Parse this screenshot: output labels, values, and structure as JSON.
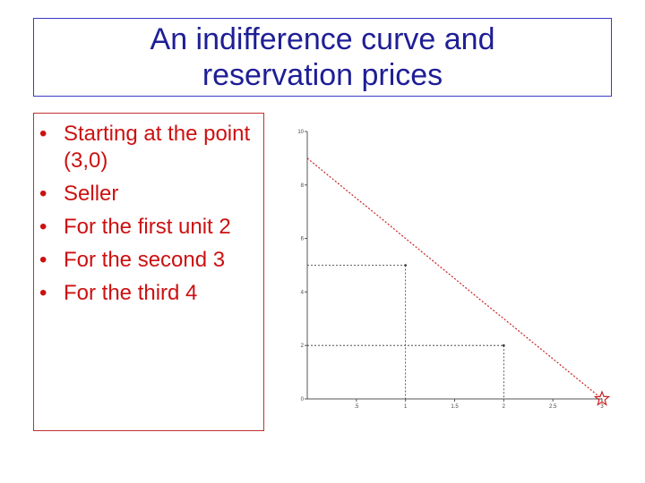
{
  "slide": {
    "title_lines": [
      "An indifference curve and",
      "reservation prices"
    ],
    "bullets": [
      "Starting at the point (3,0)",
      "Seller",
      "For the first unit 2",
      "For the second 3",
      "For the third 4"
    ],
    "colors": {
      "title_text": "#1e1e96",
      "title_border": "#3c3cc8",
      "bullet_text": "#cc1111",
      "bullet_border": "#c03030",
      "curve": "#cc2222",
      "axis": "#555555"
    }
  },
  "chart_data": {
    "type": "line",
    "title": "",
    "xlabel": "",
    "ylabel": "",
    "xlim": [
      0,
      3
    ],
    "ylim": [
      0,
      10
    ],
    "x_ticks": [
      0.5,
      1,
      1.5,
      2,
      2.5,
      3
    ],
    "y_ticks": [
      0,
      2,
      4,
      6,
      8,
      10
    ],
    "tick_labels": {
      "x": [
        ".5",
        "1",
        "1.5",
        "2",
        "2.5",
        "3"
      ],
      "y": [
        "0",
        "2",
        "4",
        "6",
        "8",
        "10"
      ]
    },
    "series": [
      {
        "x": [
          0,
          0.25,
          0.5,
          0.75,
          1,
          1.25,
          1.5,
          1.75,
          2,
          2.25,
          2.5,
          2.75,
          3
        ],
        "y": [
          9,
          8.25,
          7.5,
          6.76,
          6,
          5.25,
          4.5,
          3.74,
          3,
          2.25,
          1.5,
          0.75,
          0
        ],
        "style": "dotted"
      }
    ],
    "reference_lines": [
      {
        "x": 1,
        "y": 5,
        "style": "dotted"
      },
      {
        "x": 2,
        "y": 2,
        "style": "dotted"
      }
    ],
    "marked_point": {
      "x": 3,
      "y": 0,
      "symbol": "star"
    },
    "grid": false
  }
}
